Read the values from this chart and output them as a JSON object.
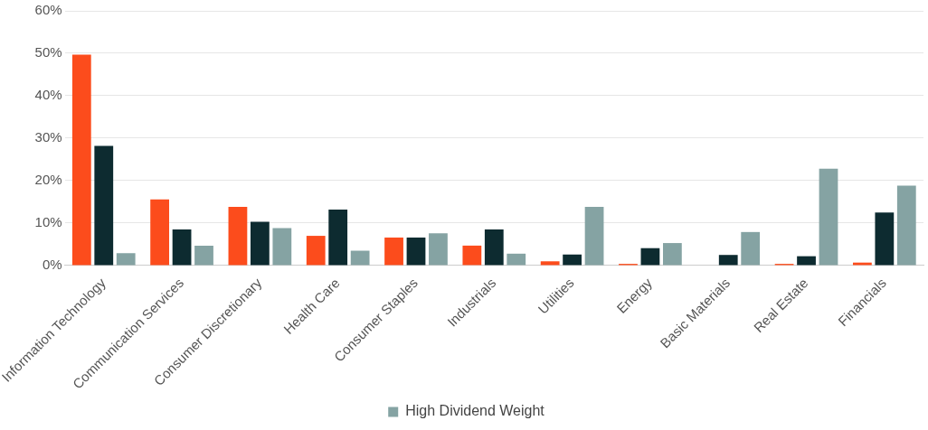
{
  "chart_data": {
    "type": "bar",
    "categories": [
      "Information Technology",
      "Communication Services",
      "Consumer Discretionary",
      "Health Care",
      "Consumer Staples",
      "Industrials",
      "Utilities",
      "Energy",
      "Basic Materials",
      "Real Estate",
      "Financials"
    ],
    "series": [
      {
        "color": "#fc4c1c",
        "values": [
          49.7,
          15.6,
          13.8,
          7.0,
          6.6,
          4.7,
          1.0,
          0.4,
          0,
          0.4,
          0.7
        ]
      },
      {
        "color": "#0d2b30",
        "values": [
          28.2,
          8.5,
          10.3,
          13.2,
          6.6,
          8.5,
          2.6,
          4.1,
          2.5,
          2.2,
          12.5
        ]
      },
      {
        "name": "High Dividend Weight",
        "color": "#85a3a3",
        "values": [
          2.9,
          4.7,
          8.8,
          3.5,
          7.6,
          2.8,
          13.8,
          5.3,
          7.9,
          22.8,
          18.8
        ]
      }
    ],
    "ylim": [
      0,
      60
    ],
    "yticks": [
      {
        "value": 0,
        "label": "0%"
      },
      {
        "value": 10,
        "label": "10%"
      },
      {
        "value": 20,
        "label": "20%"
      },
      {
        "value": 30,
        "label": "30%"
      },
      {
        "value": 40,
        "label": "40%"
      },
      {
        "value": 50,
        "label": "50%"
      },
      {
        "value": 60,
        "label": "60%"
      }
    ],
    "grid": "y",
    "legend": "bottom"
  }
}
